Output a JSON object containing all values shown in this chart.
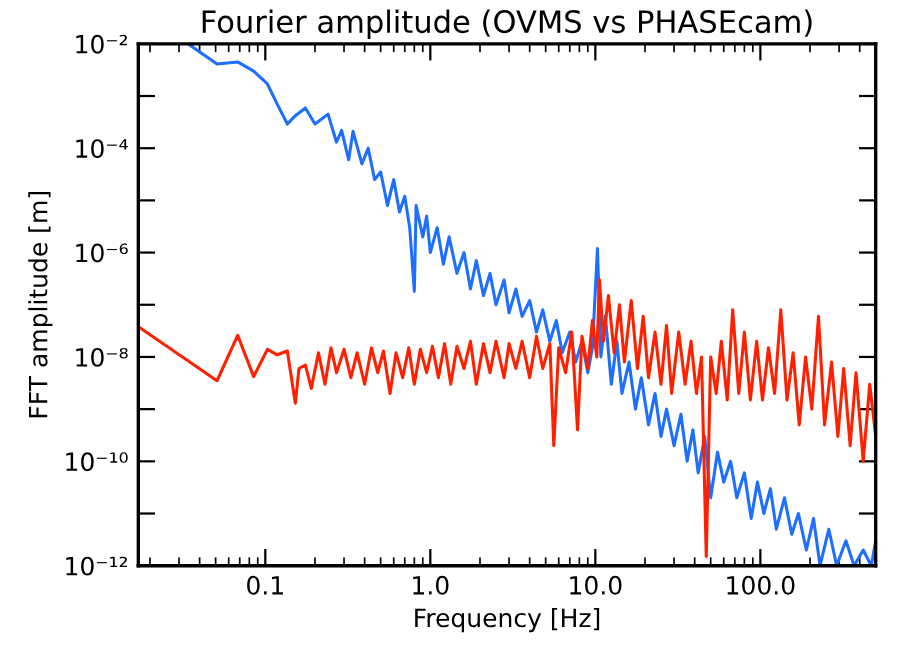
{
  "chart_data": {
    "type": "line",
    "title": "Fourier amplitude (OVMS vs PHASEcam)",
    "xlabel": "Frequency [Hz]",
    "ylabel": "FFT amplitude [m]",
    "log": "xy",
    "grid": false,
    "legend": false,
    "marker": "none",
    "line_style": "solid",
    "xlim": [
      0.017,
      500
    ],
    "ylim": [
      1e-12,
      0.01
    ],
    "xticks": [
      {
        "value": 0.1,
        "label": "0.1"
      },
      {
        "value": 1,
        "label": "1.0"
      },
      {
        "value": 10,
        "label": "10.0"
      },
      {
        "value": 100,
        "label": "100.0"
      }
    ],
    "yticks": [
      {
        "value": 1e-12,
        "label": "10⁻¹²"
      },
      {
        "value": 1e-11,
        "label": null
      },
      {
        "value": 1e-10,
        "label": "10⁻¹⁰"
      },
      {
        "value": 1e-09,
        "label": null
      },
      {
        "value": 1e-08,
        "label": "10⁻⁸"
      },
      {
        "value": 1e-07,
        "label": null
      },
      {
        "value": 1e-06,
        "label": "10⁻⁶"
      },
      {
        "value": 1e-05,
        "label": null
      },
      {
        "value": 0.0001,
        "label": "10⁻⁴"
      },
      {
        "value": 0.001,
        "label": null
      },
      {
        "value": 0.01,
        "label": "10⁻²"
      }
    ],
    "series": [
      {
        "color": "#1f6fff",
        "x": [
          0.034,
          0.051,
          0.068,
          0.085,
          0.103,
          0.118,
          0.136,
          0.152,
          0.175,
          0.2,
          0.24,
          0.27,
          0.29,
          0.32,
          0.34,
          0.385,
          0.42,
          0.46,
          0.5,
          0.55,
          0.6,
          0.65,
          0.7,
          0.75,
          0.8,
          0.82,
          0.9,
          0.95,
          1.0,
          1.1,
          1.2,
          1.3,
          1.45,
          1.6,
          1.75,
          1.9,
          2.1,
          2.3,
          2.5,
          2.8,
          3.0,
          3.3,
          3.6,
          4.0,
          4.4,
          4.8,
          5.3,
          5.8,
          6.3,
          7.0,
          7.6,
          8.3,
          9.0,
          9.6,
          10.3,
          10.8,
          11.5,
          12.5,
          13.5,
          14.5,
          16,
          17.5,
          19,
          21,
          23,
          25,
          27,
          30,
          33,
          36,
          39,
          42,
          46,
          50,
          55,
          60,
          66,
          72,
          80,
          88,
          96,
          105,
          115,
          125,
          140,
          155,
          170,
          190,
          210,
          230,
          260,
          290,
          330,
          370,
          420,
          470,
          500
        ],
        "values": [
          0.01,
          0.0041,
          0.0045,
          0.003,
          0.0017,
          0.0007,
          0.00029,
          0.00042,
          0.00059,
          0.00029,
          0.00045,
          0.00013,
          0.00022,
          6e-05,
          0.00021,
          5e-05,
          0.0001,
          2.5e-05,
          3.5e-05,
          8e-06,
          2.5e-05,
          6e-06,
          1.2e-05,
          3e-06,
          1.8e-07,
          8e-06,
          2e-06,
          5e-06,
          1e-06,
          3e-06,
          6e-07,
          2e-06,
          4e-07,
          1e-06,
          2e-07,
          7e-07,
          1.5e-07,
          4e-07,
          1e-07,
          3e-07,
          7e-08,
          2e-07,
          6e-08,
          1.2e-07,
          3e-08,
          8e-08,
          2e-08,
          5e-08,
          1.2e-08,
          3e-08,
          8e-09,
          2e-08,
          5e-09,
          1.5e-08,
          1.2e-06,
          1e-08,
          6e-08,
          3e-09,
          2e-08,
          2e-09,
          8e-09,
          1e-09,
          4e-09,
          5e-10,
          2e-09,
          3e-10,
          1e-09,
          2e-10,
          8e-10,
          1e-10,
          4e-10,
          6e-11,
          3e-10,
          2e-11,
          1.5e-10,
          4e-11,
          1e-10,
          2e-11,
          6e-11,
          8e-12,
          4e-11,
          1e-11,
          3e-11,
          5e-12,
          2e-11,
          4e-12,
          1e-11,
          2e-12,
          8e-12,
          1e-12,
          5e-12,
          1e-12,
          3e-12,
          1e-12,
          2e-12,
          1e-12,
          3e-12
        ]
      },
      {
        "color": "#ff2000",
        "x": [
          0.017,
          0.051,
          0.068,
          0.085,
          0.103,
          0.118,
          0.136,
          0.152,
          0.16,
          0.175,
          0.19,
          0.21,
          0.23,
          0.25,
          0.27,
          0.3,
          0.33,
          0.36,
          0.4,
          0.44,
          0.48,
          0.52,
          0.57,
          0.62,
          0.68,
          0.74,
          0.8,
          0.87,
          0.95,
          1.03,
          1.12,
          1.22,
          1.33,
          1.45,
          1.6,
          1.75,
          1.9,
          2.1,
          2.3,
          2.5,
          2.8,
          3.0,
          3.3,
          3.6,
          4.0,
          4.4,
          4.8,
          5.3,
          5.6,
          6.0,
          6.6,
          7.2,
          7.8,
          8.3,
          9.0,
          9.6,
          10.2,
          10.6,
          11.2,
          12,
          13,
          14,
          15,
          16.5,
          18,
          19.5,
          21,
          23,
          25,
          27,
          29,
          32,
          35,
          38,
          41,
          44,
          47,
          50,
          54,
          58,
          63,
          68,
          74,
          80,
          87,
          95,
          103,
          112,
          122,
          133,
          145,
          158,
          172,
          188,
          205,
          225,
          245,
          270,
          295,
          320,
          350,
          380,
          420,
          460,
          500
        ],
        "values": [
          3.8e-08,
          3.5e-09,
          2.6e-08,
          4.2e-09,
          1.4e-08,
          1.1e-08,
          1.3e-08,
          1.3e-09,
          6e-09,
          7e-09,
          2.5e-09,
          1.2e-08,
          3e-09,
          1.5e-08,
          5e-09,
          1.4e-08,
          4e-09,
          1.2e-08,
          3e-09,
          1.5e-08,
          5e-09,
          1.3e-08,
          2e-09,
          1.2e-08,
          4e-09,
          1.5e-08,
          3e-09,
          1.4e-08,
          5e-09,
          1.6e-08,
          4e-09,
          1.8e-08,
          3e-09,
          1.6e-08,
          6e-09,
          2e-08,
          3e-09,
          1.8e-08,
          5e-09,
          2e-08,
          4e-09,
          1.8e-08,
          6e-09,
          2e-08,
          4e-09,
          2.5e-08,
          6e-09,
          1.8e-08,
          2e-10,
          1.5e-08,
          5e-09,
          3e-08,
          4e-10,
          2.5e-08,
          6e-09,
          5e-08,
          1e-08,
          3e-07,
          2e-08,
          1.5e-07,
          1.2e-08,
          1e-07,
          8e-09,
          1.2e-07,
          6e-09,
          6e-08,
          4e-09,
          3e-08,
          3e-09,
          4e-08,
          2e-09,
          3e-08,
          3e-09,
          2e-08,
          2e-09,
          1e-08,
          1.5e-12,
          1e-08,
          2e-09,
          2e-08,
          1.5e-09,
          8e-08,
          2e-09,
          3e-08,
          1.5e-09,
          2e-08,
          1.5e-09,
          1.5e-08,
          2e-09,
          8e-08,
          1.5e-09,
          1.2e-08,
          5e-10,
          1e-08,
          1e-09,
          6e-08,
          5e-10,
          8e-09,
          3e-10,
          6e-09,
          2e-10,
          5e-09,
          1e-10,
          3e-09,
          3e-10
        ]
      }
    ]
  }
}
